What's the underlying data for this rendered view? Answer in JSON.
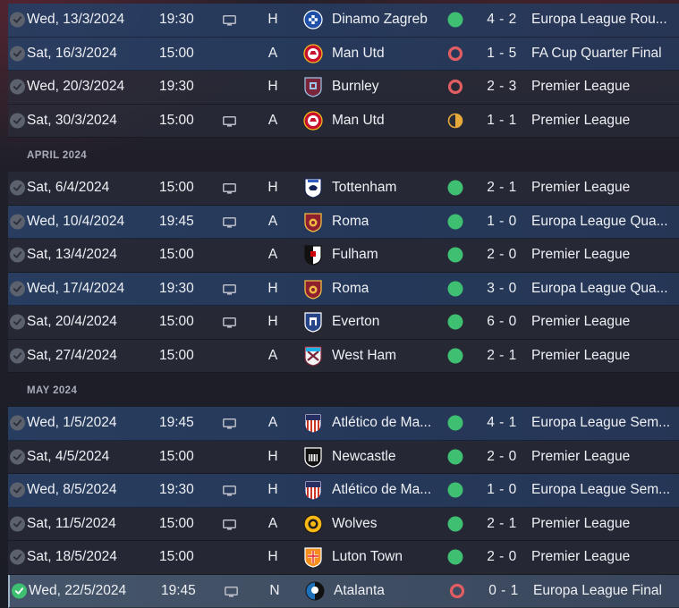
{
  "colors": {
    "win": "#3fbf72",
    "loss": "#e05d62",
    "draw": "#e6a93a",
    "europe_row": "#28406a",
    "default_row": "#2a2d3a"
  },
  "icons": {
    "played": "checkmark-icon",
    "tv": "tv-monitor-icon",
    "win": "green-dot-icon",
    "loss": "red-ring-icon",
    "draw": "half-circle-icon"
  },
  "months": {
    "april": "APRIL 2024",
    "may": "MAY 2024"
  },
  "fixtures": [
    {
      "date": "Wed, 13/3/2024",
      "time": "19:30",
      "tv": true,
      "venue": "H",
      "crest": "dinamo",
      "team": "Dinamo Zagreb",
      "result": "win",
      "score": "4 - 2",
      "comp": "Europa League Rou...",
      "europe": true
    },
    {
      "date": "Sat, 16/3/2024",
      "time": "15:00",
      "tv": false,
      "venue": "A",
      "crest": "manutd",
      "team": "Man Utd",
      "result": "loss",
      "score": "1 - 5",
      "comp": "FA Cup Quarter Final",
      "europe": true
    },
    {
      "date": "Wed, 20/3/2024",
      "time": "19:30",
      "tv": false,
      "venue": "H",
      "crest": "burnley",
      "team": "Burnley",
      "result": "loss",
      "score": "2 - 3",
      "comp": "Premier League",
      "europe": false
    },
    {
      "date": "Sat, 30/3/2024",
      "time": "15:00",
      "tv": true,
      "venue": "A",
      "crest": "manutd",
      "team": "Man Utd",
      "result": "draw",
      "score": "1 - 1",
      "comp": "Premier League",
      "europe": false
    },
    {
      "month": "april"
    },
    {
      "date": "Sat, 6/4/2024",
      "time": "15:00",
      "tv": true,
      "venue": "H",
      "crest": "tottenham",
      "team": "Tottenham",
      "result": "win",
      "score": "2 - 1",
      "comp": "Premier League",
      "europe": false
    },
    {
      "date": "Wed, 10/4/2024",
      "time": "19:45",
      "tv": true,
      "venue": "A",
      "crest": "roma",
      "team": "Roma",
      "result": "win",
      "score": "1 - 0",
      "comp": "Europa League Qua...",
      "europe": true
    },
    {
      "date": "Sat, 13/4/2024",
      "time": "15:00",
      "tv": false,
      "venue": "A",
      "crest": "fulham",
      "team": "Fulham",
      "result": "win",
      "score": "2 - 0",
      "comp": "Premier League",
      "europe": false
    },
    {
      "date": "Wed, 17/4/2024",
      "time": "19:30",
      "tv": true,
      "venue": "H",
      "crest": "roma",
      "team": "Roma",
      "result": "win",
      "score": "3 - 0",
      "comp": "Europa League Qua...",
      "europe": true
    },
    {
      "date": "Sat, 20/4/2024",
      "time": "15:00",
      "tv": true,
      "venue": "H",
      "crest": "everton",
      "team": "Everton",
      "result": "win",
      "score": "6 - 0",
      "comp": "Premier League",
      "europe": false
    },
    {
      "date": "Sat, 27/4/2024",
      "time": "15:00",
      "tv": false,
      "venue": "A",
      "crest": "westham",
      "team": "West Ham",
      "result": "win",
      "score": "2 - 1",
      "comp": "Premier League",
      "europe": false
    },
    {
      "month": "may"
    },
    {
      "date": "Wed, 1/5/2024",
      "time": "19:45",
      "tv": true,
      "venue": "A",
      "crest": "atletico",
      "team": "Atlético de Ma...",
      "result": "win",
      "score": "4 - 1",
      "comp": "Europa League Sem...",
      "europe": true
    },
    {
      "date": "Sat, 4/5/2024",
      "time": "15:00",
      "tv": false,
      "venue": "H",
      "crest": "newcastle",
      "team": "Newcastle",
      "result": "win",
      "score": "2 - 0",
      "comp": "Premier League",
      "europe": false
    },
    {
      "date": "Wed, 8/5/2024",
      "time": "19:30",
      "tv": true,
      "venue": "H",
      "crest": "atletico",
      "team": "Atlético de Ma...",
      "result": "win",
      "score": "1 - 0",
      "comp": "Europa League Sem...",
      "europe": true
    },
    {
      "date": "Sat, 11/5/2024",
      "time": "15:00",
      "tv": true,
      "venue": "A",
      "crest": "wolves",
      "team": "Wolves",
      "result": "win",
      "score": "2 - 1",
      "comp": "Premier League",
      "europe": false
    },
    {
      "date": "Sat, 18/5/2024",
      "time": "15:00",
      "tv": false,
      "venue": "H",
      "crest": "luton",
      "team": "Luton Town",
      "result": "win",
      "score": "2 - 0",
      "comp": "Premier League",
      "europe": false
    },
    {
      "date": "Wed, 22/5/2024",
      "time": "19:45",
      "tv": true,
      "venue": "N",
      "crest": "atalanta",
      "team": "Atalanta",
      "result": "loss",
      "score": "0 - 1",
      "comp": "Europa League Final",
      "europe": true,
      "selected": true
    }
  ]
}
